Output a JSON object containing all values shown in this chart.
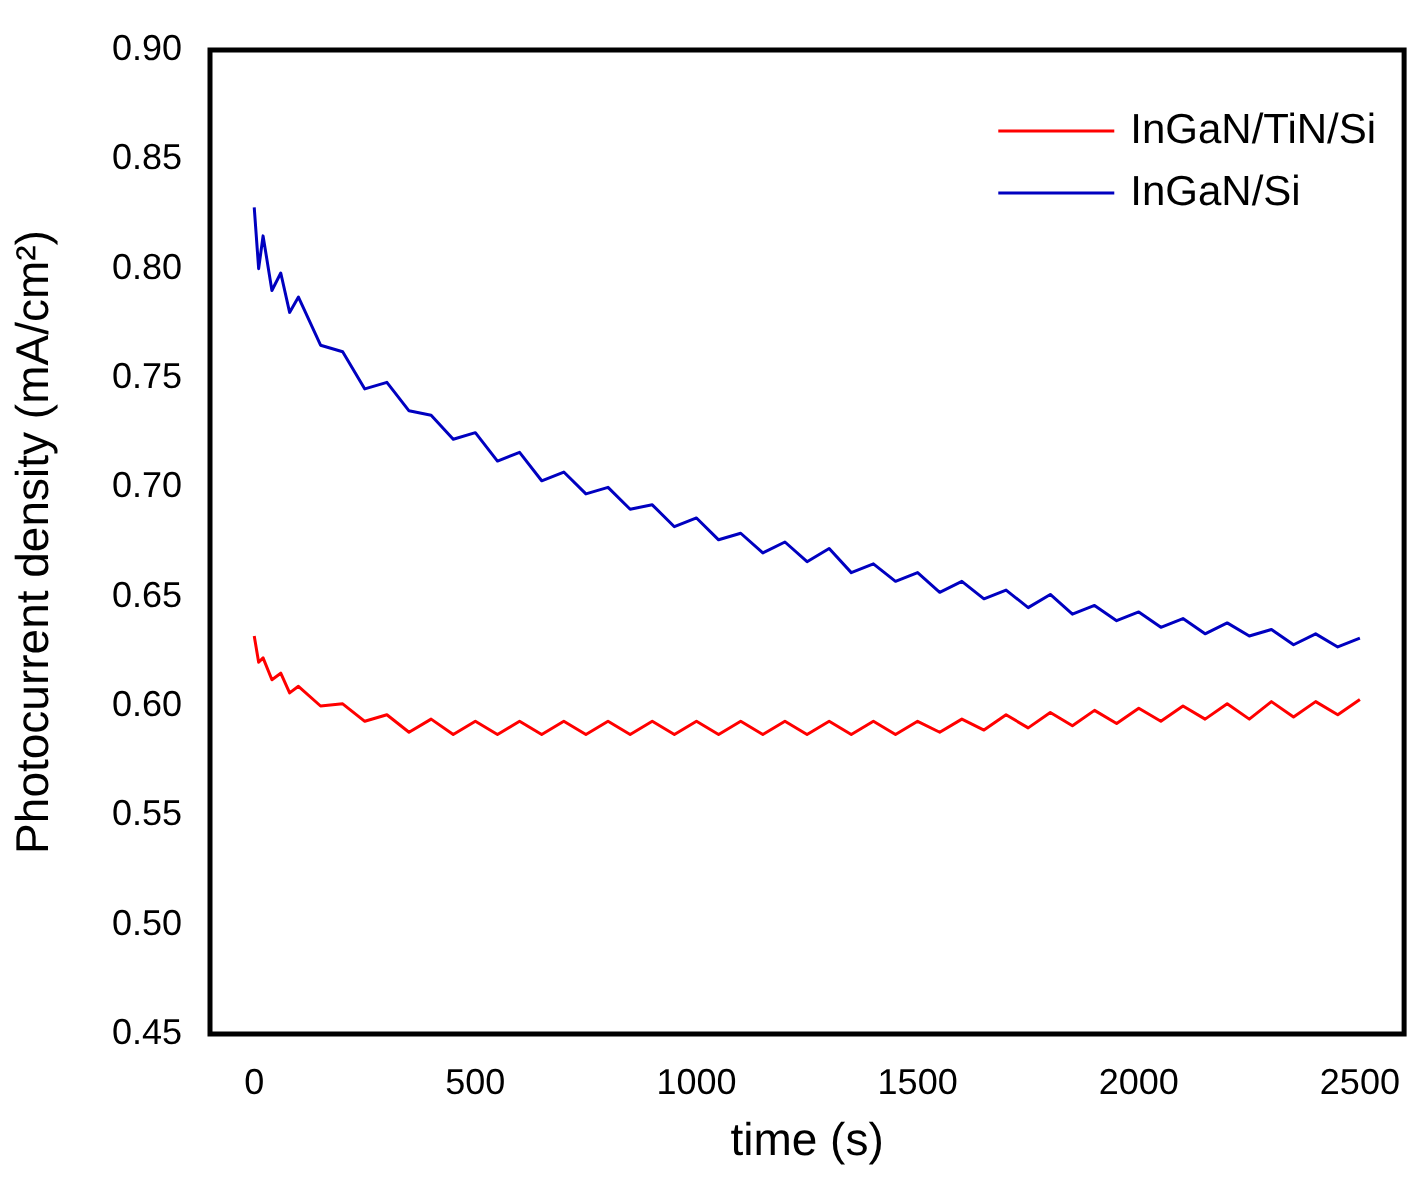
{
  "chart_data": {
    "type": "line",
    "xlabel": "time (s)",
    "ylabel": "Photocurrent density (mA/cm²)",
    "xlim": [
      -100,
      2600
    ],
    "xticks": [
      0,
      500,
      1000,
      1500,
      2000,
      2500
    ],
    "ylim": [
      0.45,
      0.9
    ],
    "yticks": [
      {
        "value": 0.45,
        "label": "0.45"
      },
      {
        "value": 0.5,
        "label": "0.50"
      },
      {
        "value": 0.55,
        "label": "0.55"
      },
      {
        "value": 0.6,
        "label": "0.60"
      },
      {
        "value": 0.65,
        "label": "0.65"
      },
      {
        "value": 0.7,
        "label": "0.70"
      },
      {
        "value": 0.75,
        "label": "0.75"
      },
      {
        "value": 0.8,
        "label": "0.80"
      },
      {
        "value": 0.85,
        "label": "0.85"
      },
      {
        "value": 0.9,
        "label": "0.90"
      }
    ],
    "grid": false,
    "legend": "top right",
    "marker": "none",
    "line_style": "solid",
    "series": [
      {
        "name": "InGaN/TiN/Si",
        "color": "#ff0000",
        "x": [
          0,
          10,
          20,
          40,
          60,
          80,
          100,
          150,
          200,
          250,
          300,
          350,
          400,
          450,
          500,
          550,
          600,
          650,
          700,
          750,
          800,
          850,
          900,
          950,
          1000,
          1050,
          1100,
          1150,
          1200,
          1250,
          1300,
          1350,
          1400,
          1450,
          1500,
          1550,
          1600,
          1650,
          1700,
          1750,
          1800,
          1850,
          1900,
          1950,
          2000,
          2050,
          2100,
          2150,
          2200,
          2250,
          2300,
          2350,
          2400,
          2450,
          2500
        ],
        "values": [
          0.632,
          0.62,
          0.622,
          0.612,
          0.615,
          0.606,
          0.609,
          0.6,
          0.601,
          0.593,
          0.596,
          0.588,
          0.594,
          0.587,
          0.593,
          0.587,
          0.593,
          0.587,
          0.593,
          0.587,
          0.593,
          0.587,
          0.593,
          0.587,
          0.593,
          0.587,
          0.593,
          0.587,
          0.593,
          0.587,
          0.593,
          0.587,
          0.593,
          0.587,
          0.593,
          0.588,
          0.594,
          0.589,
          0.596,
          0.59,
          0.597,
          0.591,
          0.598,
          0.592,
          0.599,
          0.593,
          0.6,
          0.594,
          0.601,
          0.594,
          0.602,
          0.595,
          0.602,
          0.596,
          0.603
        ]
      },
      {
        "name": "InGaN/Si",
        "color": "#0000c0",
        "x": [
          0,
          10,
          20,
          40,
          60,
          80,
          100,
          150,
          200,
          250,
          300,
          350,
          400,
          450,
          500,
          550,
          600,
          650,
          700,
          750,
          800,
          850,
          900,
          950,
          1000,
          1050,
          1100,
          1150,
          1200,
          1250,
          1300,
          1350,
          1400,
          1450,
          1500,
          1550,
          1600,
          1650,
          1700,
          1750,
          1800,
          1850,
          1900,
          1950,
          2000,
          2050,
          2100,
          2150,
          2200,
          2250,
          2300,
          2350,
          2400,
          2450,
          2500
        ],
        "values": [
          0.828,
          0.8,
          0.815,
          0.79,
          0.798,
          0.78,
          0.787,
          0.765,
          0.762,
          0.745,
          0.748,
          0.735,
          0.733,
          0.722,
          0.725,
          0.712,
          0.716,
          0.703,
          0.707,
          0.697,
          0.7,
          0.69,
          0.692,
          0.682,
          0.686,
          0.676,
          0.679,
          0.67,
          0.675,
          0.666,
          0.672,
          0.661,
          0.665,
          0.657,
          0.661,
          0.652,
          0.657,
          0.649,
          0.653,
          0.645,
          0.651,
          0.642,
          0.646,
          0.639,
          0.643,
          0.636,
          0.64,
          0.633,
          0.638,
          0.632,
          0.635,
          0.628,
          0.633,
          0.627,
          0.631
        ]
      }
    ]
  }
}
